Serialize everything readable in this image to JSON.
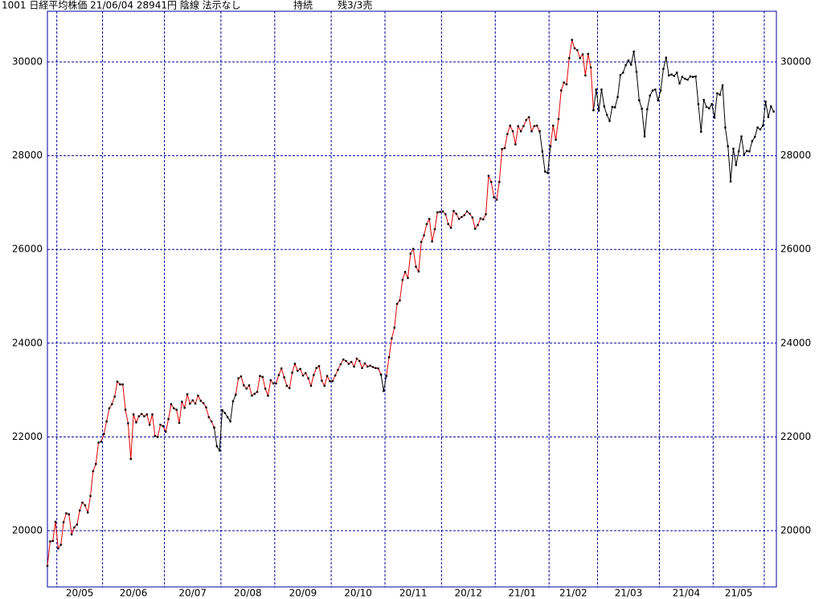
{
  "chart_data": {
    "type": "line",
    "header": [
      "1001 日経平均株価 21/06/04 28941円 陰線 法示なし",
      "持続",
      "残3/3売"
    ],
    "ylim": [
      18800,
      31080
    ],
    "yticks": [
      20000,
      22000,
      24000,
      26000,
      28000,
      30000
    ],
    "xlim": [
      0,
      271
    ],
    "xticks": [
      {
        "value": 4,
        "label": "20/05"
      },
      {
        "value": 21,
        "label": "20/06"
      },
      {
        "value": 44,
        "label": "20/07"
      },
      {
        "value": 65,
        "label": "20/08"
      },
      {
        "value": 85,
        "label": "20/09"
      },
      {
        "value": 106,
        "label": "20/10"
      },
      {
        "value": 126,
        "label": "20/11"
      },
      {
        "value": 147,
        "label": "20/12"
      },
      {
        "value": 167,
        "label": "21/01"
      },
      {
        "value": 187,
        "label": "21/02"
      },
      {
        "value": 205,
        "label": "21/03"
      },
      {
        "value": 228,
        "label": "21/04"
      },
      {
        "value": 248,
        "label": "21/05"
      },
      {
        "value": 267,
        "label": null
      }
    ],
    "grid": true,
    "grid_color": "#0000a0",
    "marker_color": "#000000",
    "series": [
      {
        "color": "#e00000",
        "values": [
          19250,
          19770,
          19780,
          20190,
          19620,
          19700,
          20180,
          20370,
          20350,
          19920,
          20070,
          20130,
          20430,
          20600,
          20540,
          20390,
          20740,
          21270,
          21420,
          21880,
          21900,
          22060,
          22330,
          22610,
          22700,
          22860,
          23180,
          23120,
          23120,
          22580,
          22290,
          21530,
          22480,
          22310,
          22440,
          22490,
          22440,
          22480,
          22260,
          22480,
          22020,
          22000,
          22260,
          22230,
          22110,
          22380,
          22700,
          22610,
          22580,
          22300,
          22750,
          22620,
          22910,
          22710,
          22780,
          22710,
          22880,
          22770,
          22720,
          22630,
          22420,
          22330,
          22200,
          null,
          null,
          null,
          null,
          null,
          null,
          null,
          22900,
          23250,
          23290,
          23100,
          23030,
          23100,
          22880,
          22920,
          22960,
          23300,
          23280,
          23030,
          22880,
          23210,
          23140,
          23140,
          23320,
          23460,
          23270,
          23090,
          23040,
          23370,
          23560,
          23410,
          23450,
          23310,
          23360,
          23250,
          23090,
          23320,
          23470,
          23510,
          23200,
          23090,
          23300,
          23190,
          23190,
          23310,
          23430,
          23550,
          23650,
          23620,
          23560,
          23600,
          23500,
          23670,
          23620,
          23470,
          23570,
          23500,
          23520,
          23490,
          23470,
          23460,
          23330,
          null,
          23300,
          23700,
          24100,
          24330,
          24840,
          24910,
          25350,
          25520,
          25390,
          25910,
          26010,
          25630,
          25530,
          26160,
          26300,
          26540,
          26650,
          26170,
          26430,
          26790,
          26800,
          26810,
          26750,
          26540,
          26460,
          26820,
          26760,
          26650,
          26690,
          26730,
          26810,
          26760,
          26680,
          26440,
          26520,
          26660,
          26640,
          26750,
          27570,
          27440,
          27110,
          27060,
          27440,
          28140,
          28160,
          28460,
          28640,
          28520,
          28240,
          28630,
          28520,
          28630,
          28760,
          28820,
          28520,
          28630,
          28640,
          28520,
          null,
          null,
          null,
          28200,
          28640,
          28340,
          28780,
          29390,
          29560,
          29520,
          30080,
          30470,
          30290,
          30250,
          30080,
          30160,
          29710,
          30170,
          29880,
          28970,
          null,
          null,
          null,
          null,
          null,
          null,
          null,
          null,
          null,
          null,
          null,
          null,
          null,
          null,
          null,
          null,
          null,
          null,
          null,
          null,
          null,
          null,
          null,
          null,
          null,
          null,
          null,
          null,
          null,
          null,
          null,
          null,
          null,
          null,
          null,
          null,
          null,
          null,
          null,
          null,
          null,
          null,
          null,
          null,
          null,
          null,
          null,
          null,
          null,
          null,
          null,
          null,
          null,
          null,
          null,
          null,
          null,
          null,
          null,
          null,
          null,
          null,
          null,
          null,
          null,
          null,
          null
        ]
      },
      {
        "color": "#000000",
        "values": [
          null,
          null,
          null,
          null,
          null,
          null,
          null,
          null,
          null,
          null,
          null,
          null,
          null,
          null,
          null,
          null,
          null,
          null,
          null,
          null,
          null,
          null,
          null,
          null,
          null,
          null,
          null,
          null,
          null,
          null,
          null,
          null,
          null,
          null,
          null,
          null,
          null,
          null,
          null,
          null,
          null,
          null,
          null,
          null,
          null,
          null,
          null,
          null,
          null,
          null,
          null,
          null,
          null,
          null,
          null,
          null,
          null,
          null,
          null,
          null,
          null,
          null,
          22200,
          21800,
          21710,
          22570,
          22510,
          22420,
          22330,
          22760,
          22900,
          null,
          null,
          null,
          null,
          null,
          null,
          null,
          null,
          null,
          null,
          null,
          null,
          null,
          null,
          null,
          null,
          null,
          null,
          null,
          null,
          null,
          null,
          null,
          null,
          null,
          null,
          null,
          null,
          null,
          null,
          null,
          null,
          null,
          null,
          null,
          null,
          null,
          null,
          null,
          null,
          null,
          null,
          null,
          null,
          null,
          null,
          null,
          null,
          null,
          null,
          null,
          null,
          null,
          23330,
          22980,
          23300,
          null,
          null,
          null,
          null,
          null,
          null,
          null,
          null,
          null,
          null,
          null,
          null,
          null,
          null,
          null,
          null,
          null,
          null,
          null,
          null,
          null,
          null,
          null,
          null,
          null,
          null,
          null,
          null,
          null,
          null,
          null,
          null,
          null,
          null,
          null,
          null,
          null,
          null,
          null,
          null,
          null,
          null,
          null,
          null,
          null,
          null,
          null,
          null,
          null,
          null,
          null,
          null,
          null,
          null,
          null,
          null,
          28520,
          28090,
          27660,
          27630,
          28200,
          null,
          null,
          null,
          null,
          null,
          null,
          null,
          null,
          null,
          null,
          null,
          null,
          null,
          null,
          null,
          28970,
          29410,
          28960,
          29410,
          29050,
          28870,
          28740,
          29040,
          29030,
          29250,
          29720,
          29770,
          29930,
          30030,
          29940,
          30220,
          29790,
          29180,
          29000,
          28410,
          28990,
          29280,
          29390,
          29410,
          29180,
          29390,
          29850,
          30090,
          29710,
          29730,
          29700,
          29770,
          29540,
          29680,
          29640,
          29620,
          29690,
          29680,
          29690,
          29100,
          28510,
          29190,
          29040,
          29010,
          29100,
          28810,
          29330,
          29300,
          29500,
          28600,
          28200,
          27450,
          28150,
          27800,
          28090,
          28410,
          28020,
          28100,
          28090,
          28310,
          28400,
          28600,
          28560,
          28640,
          29150,
          28820,
          29050,
          28940
        ]
      }
    ]
  }
}
